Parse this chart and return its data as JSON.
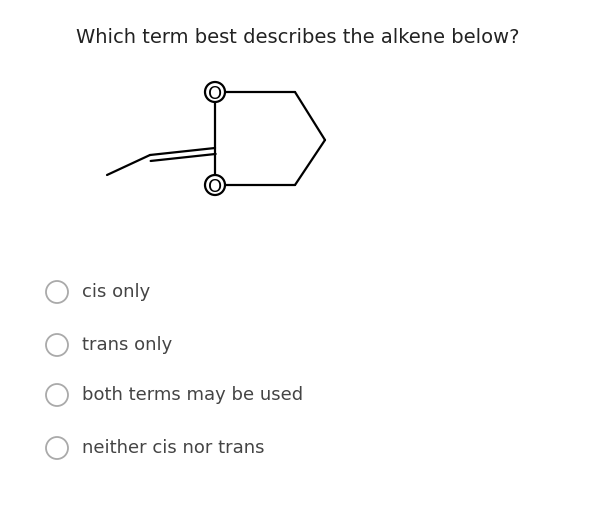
{
  "title": "Which term best describes the alkene below?",
  "title_fontsize": 14,
  "title_color": "#222222",
  "background_color": "#ffffff",
  "options": [
    "cis only",
    "trans only",
    "both terms may be used",
    "neither cis nor trans"
  ],
  "option_fontsize": 13,
  "option_color": "#444444",
  "circle_color": "#aaaaaa",
  "struct_lw": 1.6,
  "o_fontsize": 13
}
